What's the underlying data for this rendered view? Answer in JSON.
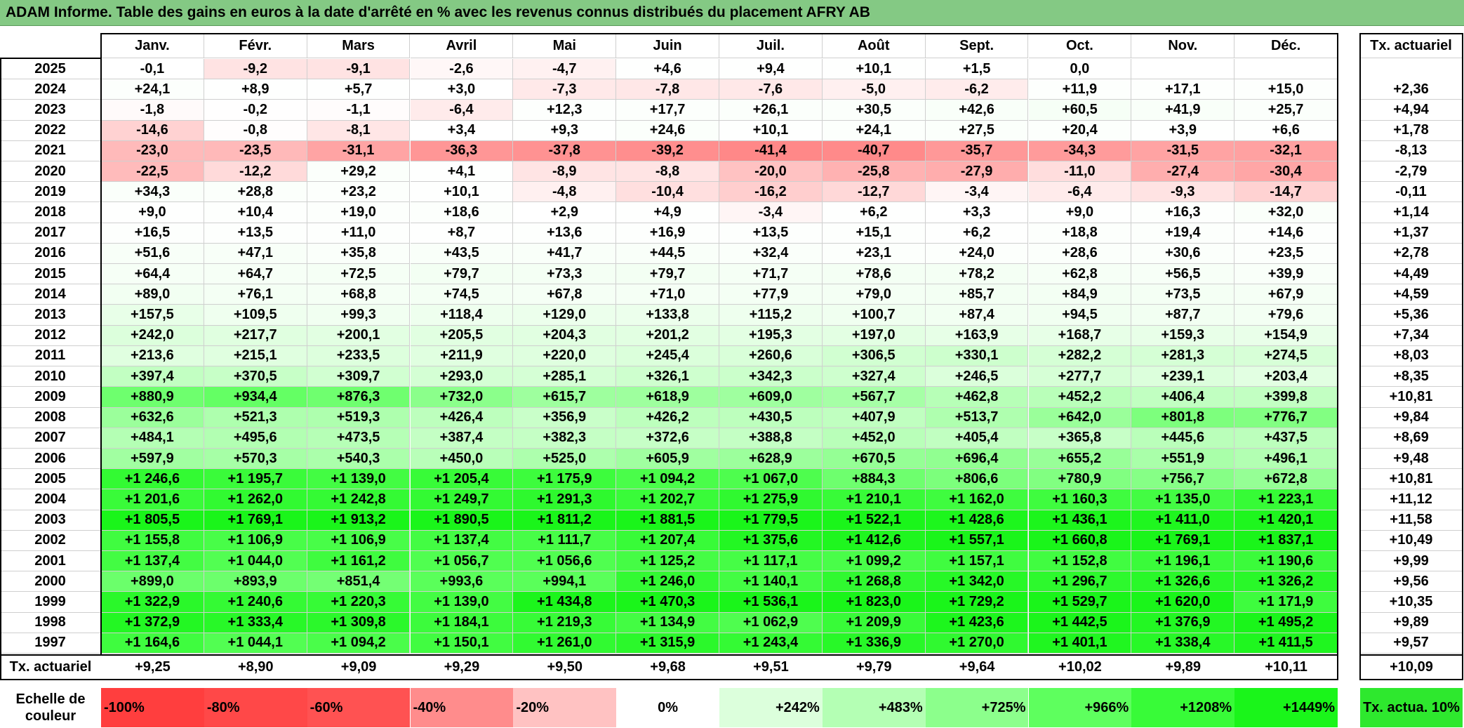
{
  "title": "ADAM Informe. Table des gains en euros à la date d'arrêté en % avec les revenus connus distribués du placement AFRY AB",
  "columns": [
    "Janv.",
    "Févr.",
    "Mars",
    "Avril",
    "Mai",
    "Juin",
    "Juil.",
    "Août",
    "Sept.",
    "Oct.",
    "Nov.",
    "Déc."
  ],
  "rate_header": "Tx. actuariel",
  "rows": [
    {
      "year": "2025",
      "cells": [
        "-0,1",
        "-9,2",
        "-9,1",
        "-2,6",
        "-4,7",
        "+4,6",
        "+9,4",
        "+10,1",
        "+1,5",
        "0,0"
      ]
    },
    {
      "year": "2024",
      "cells": [
        "+24,1",
        "+8,9",
        "+5,7",
        "+3,0",
        "-7,3",
        "-7,8",
        "-7,6",
        "-5,0",
        "-6,2",
        "+11,9",
        "+17,1",
        "+15,0"
      ],
      "rate": "+2,36"
    },
    {
      "year": "2023",
      "cells": [
        "-1,8",
        "-0,2",
        "-1,1",
        "-6,4",
        "+12,3",
        "+17,7",
        "+26,1",
        "+30,5",
        "+42,6",
        "+60,5",
        "+41,9",
        "+25,7"
      ],
      "rate": "+4,94"
    },
    {
      "year": "2022",
      "cells": [
        "-14,6",
        "-0,8",
        "-8,1",
        "+3,4",
        "+9,3",
        "+24,6",
        "+10,1",
        "+24,1",
        "+27,5",
        "+20,4",
        "+3,9",
        "+6,6"
      ],
      "rate": "+1,78"
    },
    {
      "year": "2021",
      "cells": [
        "-23,0",
        "-23,5",
        "-31,1",
        "-36,3",
        "-37,8",
        "-39,2",
        "-41,4",
        "-40,7",
        "-35,7",
        "-34,3",
        "-31,5",
        "-32,1"
      ],
      "rate": "-8,13"
    },
    {
      "year": "2020",
      "cells": [
        "-22,5",
        "-12,2",
        "+29,2",
        "+4,1",
        "-8,9",
        "-8,8",
        "-20,0",
        "-25,8",
        "-27,9",
        "-11,0",
        "-27,4",
        "-30,4"
      ],
      "rate": "-2,79"
    },
    {
      "year": "2019",
      "cells": [
        "+34,3",
        "+28,8",
        "+23,2",
        "+10,1",
        "-4,8",
        "-10,4",
        "-16,2",
        "-12,7",
        "-3,4",
        "-6,4",
        "-9,3",
        "-14,7"
      ],
      "rate": "-0,11"
    },
    {
      "year": "2018",
      "cells": [
        "+9,0",
        "+10,4",
        "+19,0",
        "+18,6",
        "+2,9",
        "+4,9",
        "-3,4",
        "+6,2",
        "+3,3",
        "+9,0",
        "+16,3",
        "+32,0"
      ],
      "rate": "+1,14"
    },
    {
      "year": "2017",
      "cells": [
        "+16,5",
        "+13,5",
        "+11,0",
        "+8,7",
        "+13,6",
        "+16,9",
        "+13,5",
        "+15,1",
        "+6,2",
        "+18,8",
        "+19,4",
        "+14,6"
      ],
      "rate": "+1,37"
    },
    {
      "year": "2016",
      "cells": [
        "+51,6",
        "+47,1",
        "+35,8",
        "+43,5",
        "+41,7",
        "+44,5",
        "+32,4",
        "+23,1",
        "+24,0",
        "+28,6",
        "+30,6",
        "+23,5"
      ],
      "rate": "+2,78"
    },
    {
      "year": "2015",
      "cells": [
        "+64,4",
        "+64,7",
        "+72,5",
        "+79,7",
        "+73,3",
        "+79,7",
        "+71,7",
        "+78,6",
        "+78,2",
        "+62,8",
        "+56,5",
        "+39,9"
      ],
      "rate": "+4,49"
    },
    {
      "year": "2014",
      "cells": [
        "+89,0",
        "+76,1",
        "+68,8",
        "+74,5",
        "+67,8",
        "+71,0",
        "+77,9",
        "+79,0",
        "+85,7",
        "+84,9",
        "+73,5",
        "+67,9"
      ],
      "rate": "+4,59"
    },
    {
      "year": "2013",
      "cells": [
        "+157,5",
        "+109,5",
        "+99,3",
        "+118,4",
        "+129,0",
        "+133,8",
        "+115,2",
        "+100,7",
        "+87,4",
        "+94,5",
        "+87,7",
        "+79,6"
      ],
      "rate": "+5,36"
    },
    {
      "year": "2012",
      "cells": [
        "+242,0",
        "+217,7",
        "+200,1",
        "+205,5",
        "+204,3",
        "+201,2",
        "+195,3",
        "+197,0",
        "+163,9",
        "+168,7",
        "+159,3",
        "+154,9"
      ],
      "rate": "+7,34"
    },
    {
      "year": "2011",
      "cells": [
        "+213,6",
        "+215,1",
        "+233,5",
        "+211,9",
        "+220,0",
        "+245,4",
        "+260,6",
        "+306,5",
        "+330,1",
        "+282,2",
        "+281,3",
        "+274,5"
      ],
      "rate": "+8,03"
    },
    {
      "year": "2010",
      "cells": [
        "+397,4",
        "+370,5",
        "+309,7",
        "+293,0",
        "+285,1",
        "+326,1",
        "+342,3",
        "+327,4",
        "+246,5",
        "+277,7",
        "+239,1",
        "+203,4"
      ],
      "rate": "+8,35"
    },
    {
      "year": "2009",
      "cells": [
        "+880,9",
        "+934,4",
        "+876,3",
        "+732,0",
        "+615,7",
        "+618,9",
        "+609,0",
        "+567,7",
        "+462,8",
        "+452,2",
        "+406,4",
        "+399,8"
      ],
      "rate": "+10,81"
    },
    {
      "year": "2008",
      "cells": [
        "+632,6",
        "+521,3",
        "+519,3",
        "+426,4",
        "+356,9",
        "+426,2",
        "+430,5",
        "+407,9",
        "+513,7",
        "+642,0",
        "+801,8",
        "+776,7"
      ],
      "rate": "+9,84"
    },
    {
      "year": "2007",
      "cells": [
        "+484,1",
        "+495,6",
        "+473,5",
        "+387,4",
        "+382,3",
        "+372,6",
        "+388,8",
        "+452,0",
        "+405,4",
        "+365,8",
        "+445,6",
        "+437,5"
      ],
      "rate": "+8,69"
    },
    {
      "year": "2006",
      "cells": [
        "+597,9",
        "+570,3",
        "+540,3",
        "+450,0",
        "+525,0",
        "+605,9",
        "+628,9",
        "+670,5",
        "+696,4",
        "+655,2",
        "+551,9",
        "+496,1"
      ],
      "rate": "+9,48"
    },
    {
      "year": "2005",
      "cells": [
        "+1 246,6",
        "+1 195,7",
        "+1 139,0",
        "+1 205,4",
        "+1 175,9",
        "+1 094,2",
        "+1 067,0",
        "+884,3",
        "+806,6",
        "+780,9",
        "+756,7",
        "+672,8"
      ],
      "rate": "+10,81"
    },
    {
      "year": "2004",
      "cells": [
        "+1 201,6",
        "+1 262,0",
        "+1 242,8",
        "+1 249,7",
        "+1 291,3",
        "+1 202,7",
        "+1 275,9",
        "+1 210,1",
        "+1 162,0",
        "+1 160,3",
        "+1 135,0",
        "+1 223,1"
      ],
      "rate": "+11,12"
    },
    {
      "year": "2003",
      "cells": [
        "+1 805,5",
        "+1 769,1",
        "+1 913,2",
        "+1 890,5",
        "+1 811,2",
        "+1 881,5",
        "+1 779,5",
        "+1 522,1",
        "+1 428,6",
        "+1 436,1",
        "+1 411,0",
        "+1 420,1"
      ],
      "rate": "+11,58"
    },
    {
      "year": "2002",
      "cells": [
        "+1 155,8",
        "+1 106,9",
        "+1 106,9",
        "+1 137,4",
        "+1 111,7",
        "+1 207,4",
        "+1 375,6",
        "+1 412,6",
        "+1 557,1",
        "+1 660,8",
        "+1 769,1",
        "+1 837,1"
      ],
      "rate": "+10,49"
    },
    {
      "year": "2001",
      "cells": [
        "+1 137,4",
        "+1 044,0",
        "+1 161,2",
        "+1 056,7",
        "+1 056,6",
        "+1 125,2",
        "+1 117,1",
        "+1 099,2",
        "+1 157,1",
        "+1 152,8",
        "+1 196,1",
        "+1 190,6"
      ],
      "rate": "+9,99"
    },
    {
      "year": "2000",
      "cells": [
        "+899,0",
        "+893,9",
        "+851,4",
        "+993,6",
        "+994,1",
        "+1 246,0",
        "+1 140,1",
        "+1 268,8",
        "+1 342,0",
        "+1 296,7",
        "+1 326,6",
        "+1 326,2"
      ],
      "rate": "+9,56"
    },
    {
      "year": "1999",
      "cells": [
        "+1 322,9",
        "+1 240,6",
        "+1 220,3",
        "+1 139,0",
        "+1 434,8",
        "+1 470,3",
        "+1 536,1",
        "+1 823,0",
        "+1 729,2",
        "+1 529,7",
        "+1 620,0",
        "+1 171,9"
      ],
      "rate": "+10,35"
    },
    {
      "year": "1998",
      "cells": [
        "+1 372,9",
        "+1 333,4",
        "+1 309,8",
        "+1 184,1",
        "+1 219,3",
        "+1 134,9",
        "+1 062,9",
        "+1 209,9",
        "+1 423,6",
        "+1 442,5",
        "+1 376,9",
        "+1 495,2"
      ],
      "rate": "+9,89"
    },
    {
      "year": "1997",
      "cells": [
        "+1 164,6",
        "+1 044,1",
        "+1 094,2",
        "+1 150,1",
        "+1 261,0",
        "+1 315,9",
        "+1 243,4",
        "+1 336,9",
        "+1 270,0",
        "+1 401,1",
        "+1 338,4",
        "+1 411,5"
      ],
      "rate": "+9,57"
    }
  ],
  "footer": {
    "label": "Tx. actuariel",
    "cells": [
      "+9,25",
      "+8,90",
      "+9,09",
      "+9,29",
      "+9,50",
      "+9,68",
      "+9,51",
      "+9,79",
      "+9,64",
      "+10,02",
      "+9,89",
      "+10,11"
    ],
    "rate": "+10,09"
  },
  "scale": {
    "label": "Echelle de couleur",
    "stops": [
      {
        "value": -100,
        "label": "-100%",
        "color": "#ff3e3e"
      },
      {
        "value": -80,
        "label": "-80%",
        "color": "#ff4848"
      },
      {
        "value": -60,
        "label": "-60%",
        "color": "#ff5252"
      },
      {
        "value": -40,
        "label": "-40%",
        "color": "#ff8c8c"
      },
      {
        "value": -20,
        "label": "-20%",
        "color": "#ffc2c2"
      },
      {
        "value": 0,
        "label": "0%",
        "color": "#ffffff"
      },
      {
        "value": 242,
        "label": "+242%",
        "color": "#dcffdc"
      },
      {
        "value": 483,
        "label": "+483%",
        "color": "#b4ffb4"
      },
      {
        "value": 725,
        "label": "+725%",
        "color": "#8cff8c"
      },
      {
        "value": 966,
        "label": "+966%",
        "color": "#5eff5e"
      },
      {
        "value": 1208,
        "label": "+1208%",
        "color": "#38fb38"
      },
      {
        "value": 1449,
        "label": "+1449%",
        "color": "#1af51a"
      }
    ],
    "rate_box": "Tx. actua. 10%"
  }
}
